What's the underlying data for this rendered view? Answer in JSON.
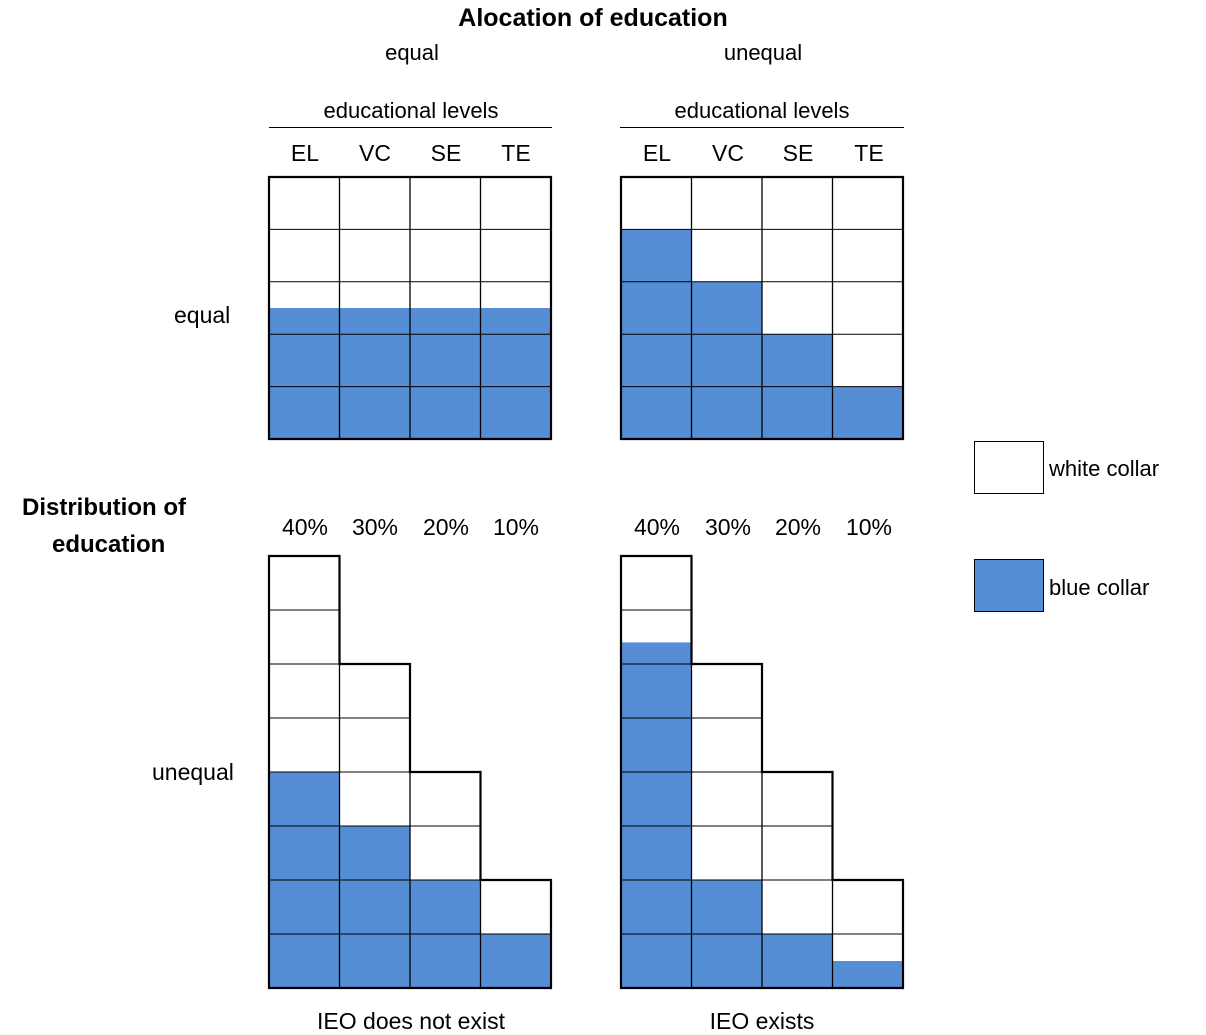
{
  "title": "Alocation of education",
  "column_headers": [
    "equal",
    "unequal"
  ],
  "row_headers": [
    "equal",
    "unequal"
  ],
  "row_axis_title_line1": "Distribution of",
  "row_axis_title_line2": "education",
  "levels_heading": "educational levels",
  "levels": [
    "EL",
    "VC",
    "SE",
    "TE"
  ],
  "distribution": [
    "40%",
    "30%",
    "20%",
    "10%"
  ],
  "captions": [
    "IEO does not exist",
    "IEO exists"
  ],
  "legend": [
    {
      "label": "white collar",
      "color": "#ffffff"
    },
    {
      "label": "blue collar",
      "color": "#558ed5"
    }
  ],
  "colors": {
    "blue_collar": "#558ed5",
    "white_collar": "#ffffff",
    "grid": "#000000"
  },
  "panels": [
    {
      "name": "equal-distribution-equal-allocation",
      "column_heights": [
        1,
        1,
        1,
        1
      ],
      "blue_collar_share": [
        0.5,
        0.5,
        0.5,
        0.5
      ]
    },
    {
      "name": "equal-distribution-unequal-allocation",
      "column_heights": [
        1,
        1,
        1,
        1
      ],
      "blue_collar_share": [
        0.8,
        0.6,
        0.4,
        0.2
      ]
    },
    {
      "name": "unequal-distribution-equal-allocation",
      "column_heights": [
        0.4,
        0.3,
        0.2,
        0.1
      ],
      "blue_collar_share": [
        0.5,
        0.5,
        0.5,
        0.5
      ]
    },
    {
      "name": "unequal-distribution-unequal-allocation",
      "column_heights": [
        0.4,
        0.3,
        0.2,
        0.1
      ],
      "blue_collar_share": [
        0.8,
        0.333,
        0.25,
        0.25
      ]
    }
  ]
}
